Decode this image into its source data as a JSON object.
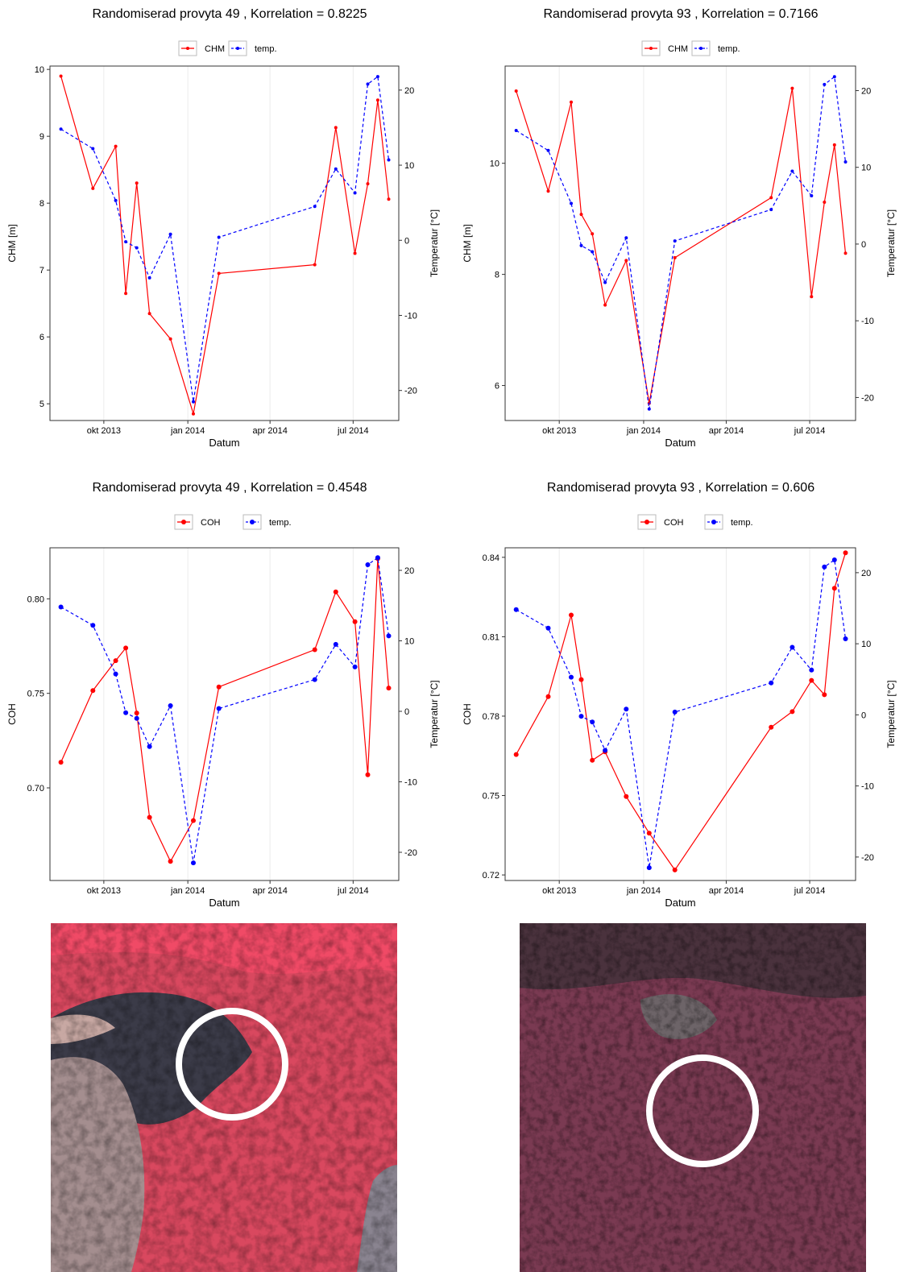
{
  "colors": {
    "primary_series": "#ff0000",
    "temperature_series": "#0000ff",
    "panel_border": "#333333",
    "gridline": "#ebebeb",
    "photo_forest": "#d9465f",
    "photo_dark_forest": "#3a2a33",
    "photo_circle": "#ffffff"
  },
  "legend_labels": {
    "chm": "CHM",
    "coh": "COH",
    "temp": "temp."
  },
  "x_axis": {
    "label": "Datum",
    "ticks": [
      "okt 2013",
      "jan 2014",
      "apr 2014",
      "jul 2014"
    ]
  },
  "right_axis": {
    "label": "Temperatur [°C]",
    "ticks": [
      "-20",
      "-10",
      "0",
      "10",
      "20"
    ]
  },
  "chart_data": [
    {
      "type": "line",
      "title": "Randomiserad provyta 49 , Korrelation =  0.8225",
      "xlabel": "Datum",
      "ylabel": "CHM [m]",
      "y2label": "Temperatur [°C]",
      "legend_position": "top",
      "grid": true,
      "x": [
        "2013-08-15",
        "2013-09-19",
        "2013-10-14",
        "2013-10-25",
        "2013-11-06",
        "2013-11-20",
        "2013-12-13",
        "2014-01-07",
        "2014-02-04",
        "2014-05-20",
        "2014-06-12",
        "2014-07-03",
        "2014-07-17",
        "2014-07-28",
        "2014-08-09"
      ],
      "xlim": [
        "2013-08-03",
        "2014-08-20"
      ],
      "ylim": [
        4.75,
        10.05
      ],
      "y2lim": [
        -24,
        23.2
      ],
      "yticks": [
        "5",
        "6",
        "7",
        "8",
        "9",
        "10"
      ],
      "series": [
        {
          "name": "CHM",
          "axis": "left",
          "style": "solid",
          "values": [
            9.9,
            8.22,
            8.85,
            6.65,
            8.3,
            6.35,
            5.97,
            4.85,
            6.95,
            7.08,
            9.13,
            7.25,
            8.29,
            9.54,
            8.06
          ]
        },
        {
          "name": "temp.",
          "axis": "right",
          "style": "dashed",
          "values": [
            14.8,
            12.2,
            5.3,
            -0.2,
            -1.0,
            -5.0,
            0.8,
            -21.5,
            0.4,
            4.5,
            9.5,
            6.3,
            20.8,
            21.8,
            10.7
          ]
        }
      ]
    },
    {
      "type": "line",
      "title": "Randomiserad provyta 93 , Korrelation =  0.7166",
      "xlabel": "Datum",
      "ylabel": "CHM [m]",
      "y2label": "Temperatur [°C]",
      "legend_position": "top",
      "grid": true,
      "x": [
        "2013-08-15",
        "2013-09-19",
        "2013-10-14",
        "2013-10-25",
        "2013-11-06",
        "2013-11-20",
        "2013-12-13",
        "2014-01-07",
        "2014-02-04",
        "2014-05-20",
        "2014-06-12",
        "2014-07-03",
        "2014-07-17",
        "2014-07-28",
        "2014-08-09"
      ],
      "xlim": [
        "2013-08-03",
        "2014-08-20"
      ],
      "ylim": [
        5.37,
        11.75
      ],
      "y2lim": [
        -23,
        23.2
      ],
      "yticks": [
        "6",
        "8",
        "10"
      ],
      "series": [
        {
          "name": "CHM",
          "axis": "left",
          "style": "solid",
          "values": [
            11.3,
            9.5,
            11.1,
            9.08,
            8.73,
            7.45,
            8.25,
            5.68,
            8.3,
            9.38,
            11.35,
            7.6,
            9.3,
            10.33,
            8.38
          ]
        },
        {
          "name": "temp.",
          "axis": "right",
          "style": "dashed",
          "values": [
            14.8,
            12.2,
            5.3,
            -0.2,
            -1.0,
            -5.0,
            0.8,
            -21.5,
            0.4,
            4.5,
            9.5,
            6.3,
            20.8,
            21.8,
            10.7
          ]
        }
      ]
    },
    {
      "type": "line",
      "title": "Randomiserad provyta 49 , Korrelation =  0.4548",
      "xlabel": "Datum",
      "ylabel": "COH",
      "y2label": "Temperatur [°C]",
      "legend_position": "top",
      "grid": true,
      "x": [
        "2013-08-15",
        "2013-09-19",
        "2013-10-14",
        "2013-10-25",
        "2013-11-06",
        "2013-11-20",
        "2013-12-13",
        "2014-01-07",
        "2014-02-04",
        "2014-05-20",
        "2014-06-12",
        "2014-07-03",
        "2014-07-17",
        "2014-07-28",
        "2014-08-09"
      ],
      "xlim": [
        "2013-08-03",
        "2014-08-20"
      ],
      "ylim": [
        0.651,
        0.827
      ],
      "y2lim": [
        -24,
        23.2
      ],
      "yticks": [
        "0.70",
        "0.75",
        "0.80"
      ],
      "series": [
        {
          "name": "COH",
          "axis": "left",
          "style": "solid",
          "values": [
            0.7135,
            0.7515,
            0.7673,
            0.774,
            0.7396,
            0.6844,
            0.6611,
            0.6827,
            0.7534,
            0.7731,
            0.8037,
            0.7879,
            0.7069,
            0.8213,
            0.7528
          ]
        },
        {
          "name": "temp.",
          "axis": "right",
          "style": "dashed",
          "values": [
            14.8,
            12.2,
            5.3,
            -0.2,
            -1.0,
            -5.0,
            0.8,
            -21.5,
            0.4,
            4.5,
            9.5,
            6.3,
            20.8,
            21.8,
            10.7
          ]
        }
      ]
    },
    {
      "type": "line",
      "title": "Randomiserad provyta 93 , Korrelation =  0.606",
      "xlabel": "Datum",
      "ylabel": "COH",
      "y2label": "Temperatur [°C]",
      "legend_position": "top",
      "grid": true,
      "x": [
        "2013-08-15",
        "2013-09-19",
        "2013-10-14",
        "2013-10-25",
        "2013-11-06",
        "2013-11-20",
        "2013-12-13",
        "2014-01-07",
        "2014-02-04",
        "2014-05-20",
        "2014-06-12",
        "2014-07-03",
        "2014-07-17",
        "2014-07-28",
        "2014-08-09"
      ],
      "xlim": [
        "2013-08-03",
        "2014-08-20"
      ],
      "ylim": [
        0.7179,
        0.8436
      ],
      "y2lim": [
        -23.3,
        23.5
      ],
      "yticks": [
        "0.72",
        "0.75",
        "0.78",
        "0.81",
        "0.84"
      ],
      "series": [
        {
          "name": "COH",
          "axis": "left",
          "style": "solid",
          "values": [
            0.7655,
            0.7874,
            0.8182,
            0.7938,
            0.7633,
            0.7665,
            0.7496,
            0.7358,
            0.7219,
            0.7758,
            0.7817,
            0.7935,
            0.7881,
            0.8283,
            0.8417
          ]
        },
        {
          "name": "temp.",
          "axis": "right",
          "style": "dashed",
          "values": [
            14.8,
            12.2,
            5.3,
            -0.2,
            -1.0,
            -5.0,
            0.8,
            -21.5,
            0.4,
            4.5,
            9.5,
            6.3,
            20.8,
            21.8,
            10.7
          ]
        }
      ]
    }
  ]
}
